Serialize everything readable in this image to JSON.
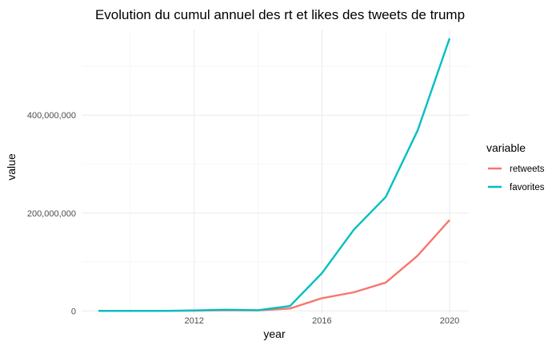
{
  "chart_data": {
    "type": "line",
    "title": "Evolution du cumul annuel des rt et likes des tweets de trump",
    "xlabel": "year",
    "ylabel": "value",
    "xlim": [
      2008.5,
      2020.6
    ],
    "ylim": [
      -6000000,
      575000000
    ],
    "x_ticks": [
      2012,
      2016,
      2020
    ],
    "x_tick_labels": [
      "2012",
      "2016",
      "2020"
    ],
    "y_ticks": [
      0,
      200000000,
      400000000
    ],
    "y_tick_labels": [
      "0",
      "200,000,000",
      "400,000,000"
    ],
    "grid": true,
    "legend": {
      "title": "variable",
      "position": "right"
    },
    "x": [
      2009,
      2010,
      2011,
      2012,
      2013,
      2014,
      2015,
      2016,
      2017,
      2018,
      2019,
      2020
    ],
    "series": [
      {
        "name": "retweets",
        "color": "#F8766D",
        "values": [
          0,
          0,
          100000,
          500000,
          1500000,
          1000000,
          5000000,
          26000000,
          38000000,
          58000000,
          113000000,
          186000000
        ]
      },
      {
        "name": "favorites",
        "color": "#00BFC4",
        "values": [
          0,
          0,
          100000,
          1000000,
          2500000,
          1500000,
          10000000,
          77000000,
          166000000,
          233000000,
          369000000,
          557000000
        ]
      }
    ]
  }
}
